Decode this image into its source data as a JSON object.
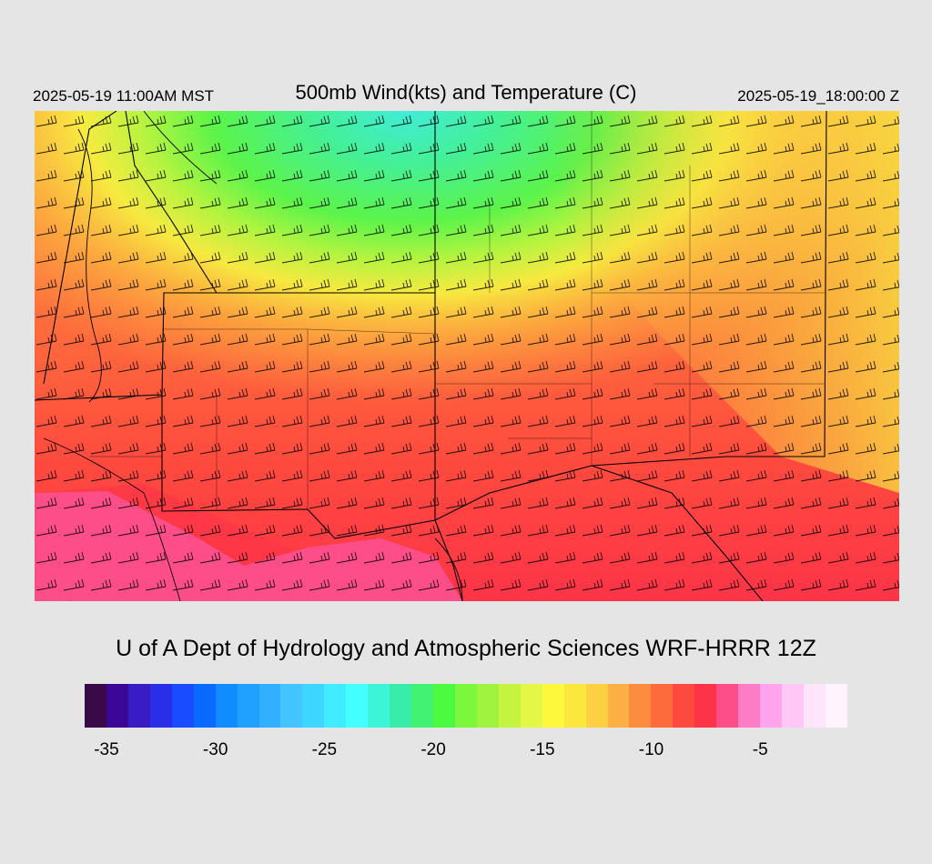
{
  "header": {
    "left_time": "2025-05-19 11:00AM MST",
    "title": "500mb Wind(kts) and Temperature (C)",
    "right_time": "2025-05-19_18:00:00 Z"
  },
  "footer": {
    "credit": "U of A Dept of Hydrology and Atmospheric Sciences WRF-HRRR 12Z"
  },
  "colorbar": {
    "colors": [
      "#3a0a46",
      "#3b0796",
      "#3a1cc4",
      "#2a2ee8",
      "#1a4cff",
      "#0a6aff",
      "#108cff",
      "#20a0ff",
      "#32b0ff",
      "#44c4ff",
      "#3cd6ff",
      "#40ecff",
      "#44ffff",
      "#3cf4d6",
      "#36eeaa",
      "#42f272",
      "#4cfa40",
      "#7cf83c",
      "#a0f43e",
      "#c4f440",
      "#e4f646",
      "#fef83c",
      "#fce83c",
      "#fcd040",
      "#fcb042",
      "#fd8c3e",
      "#fd6a3c",
      "#fe4a3e",
      "#fd3448",
      "#fd4e8a",
      "#fd7cc6",
      "#fea4ec",
      "#ffc8f4",
      "#ffe4fa",
      "#fff4fe"
    ],
    "tick_labels": [
      {
        "label": "-35",
        "value": -35
      },
      {
        "label": "-30",
        "value": -30
      },
      {
        "label": "-25",
        "value": -25
      },
      {
        "label": "-20",
        "value": -20
      },
      {
        "label": "-15",
        "value": -15
      },
      {
        "label": "-10",
        "value": -10
      },
      {
        "label": "-5",
        "value": -5
      }
    ]
  }
}
